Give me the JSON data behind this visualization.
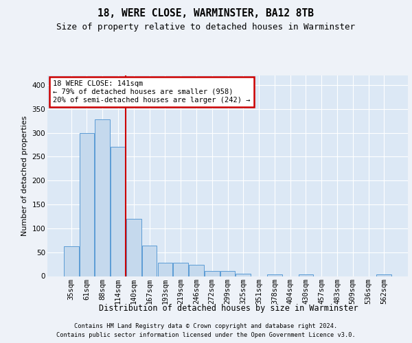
{
  "title": "18, WERE CLOSE, WARMINSTER, BA12 8TB",
  "subtitle": "Size of property relative to detached houses in Warminster",
  "xlabel": "Distribution of detached houses by size in Warminster",
  "ylabel": "Number of detached properties",
  "footnote1": "Contains HM Land Registry data © Crown copyright and database right 2024.",
  "footnote2": "Contains public sector information licensed under the Open Government Licence v3.0.",
  "bar_color": "#c5d9ed",
  "bar_edge_color": "#5b9bd5",
  "vline_color": "#cc0000",
  "vline_x": 3.5,
  "annotation_line1": "18 WERE CLOSE: 141sqm",
  "annotation_line2": "← 79% of detached houses are smaller (958)",
  "annotation_line3": "20% of semi-detached houses are larger (242) →",
  "annotation_box_color": "white",
  "annotation_box_edgecolor": "#cc0000",
  "categories": [
    "35sqm",
    "61sqm",
    "88sqm",
    "114sqm",
    "140sqm",
    "167sqm",
    "193sqm",
    "219sqm",
    "246sqm",
    "272sqm",
    "299sqm",
    "325sqm",
    "351sqm",
    "378sqm",
    "404sqm",
    "430sqm",
    "457sqm",
    "483sqm",
    "509sqm",
    "536sqm",
    "562sqm"
  ],
  "values": [
    62,
    300,
    328,
    270,
    120,
    64,
    28,
    28,
    24,
    11,
    11,
    5,
    0,
    4,
    0,
    3,
    0,
    0,
    0,
    0,
    3
  ],
  "ylim": [
    0,
    420
  ],
  "yticks": [
    0,
    50,
    100,
    150,
    200,
    250,
    300,
    350,
    400
  ],
  "background_color": "#eef2f8",
  "axes_background": "#dce8f5",
  "grid_color": "white",
  "title_fontsize": 10.5,
  "subtitle_fontsize": 9,
  "tick_fontsize": 7.5,
  "ylabel_fontsize": 8,
  "xlabel_fontsize": 8.5,
  "annot_fontsize": 7.5,
  "footnote_fontsize": 6.2
}
